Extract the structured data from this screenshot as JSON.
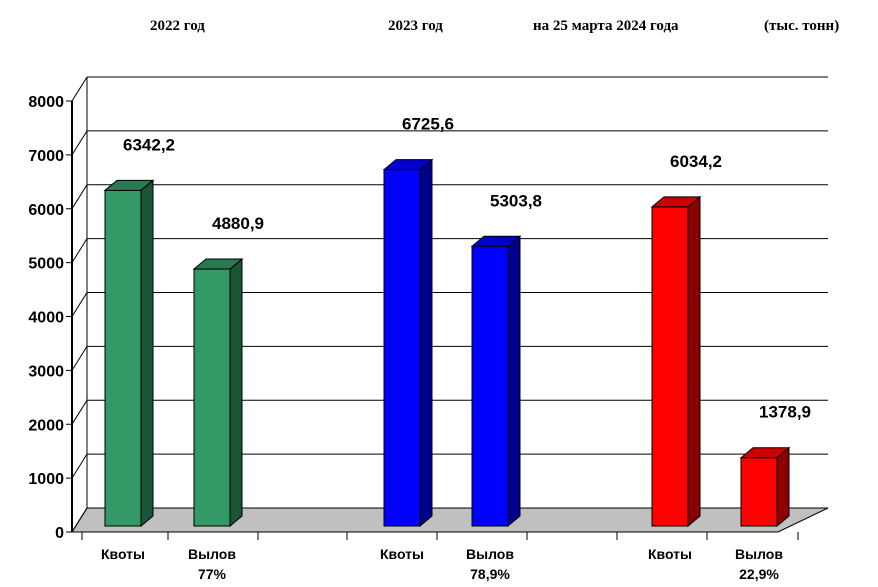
{
  "headers": {
    "y2022": "2022  год",
    "y2023": "2023  год",
    "y2024": "на 25 марта 2024 года",
    "unit": "(тыс. тонн)"
  },
  "chart_data": {
    "type": "bar",
    "title": "",
    "xlabel": "",
    "ylabel": "",
    "ylim": [
      0,
      8000
    ],
    "yticks": [
      "0",
      "1000",
      "2000",
      "3000",
      "4000",
      "5000",
      "6000",
      "7000",
      "8000"
    ],
    "grid": true,
    "legend": "none",
    "groups": [
      {
        "header": "2022  год",
        "color": "#339966",
        "bars": [
          {
            "category": "Квоты",
            "sublabel": "",
            "value": 6342.2,
            "label": "6342,2"
          },
          {
            "category": "Вылов",
            "sublabel": "77%",
            "value": 4880.9,
            "label": "4880,9"
          }
        ]
      },
      {
        "header": "2023  год",
        "color": "#0000ff",
        "bars": [
          {
            "category": "Квоты",
            "sublabel": "",
            "value": 6725.6,
            "label": "6725,6"
          },
          {
            "category": "Вылов",
            "sublabel": "78,9%",
            "value": 5303.8,
            "label": "5303,8"
          }
        ]
      },
      {
        "header": "на 25 марта 2024 года",
        "color": "#ff0000",
        "bars": [
          {
            "category": "Квоты",
            "sublabel": "",
            "value": 6034.2,
            "label": "6034,2"
          },
          {
            "category": "Вылов",
            "sublabel": "22,9%",
            "value": 1378.9,
            "label": "1378,9"
          }
        ]
      }
    ]
  }
}
